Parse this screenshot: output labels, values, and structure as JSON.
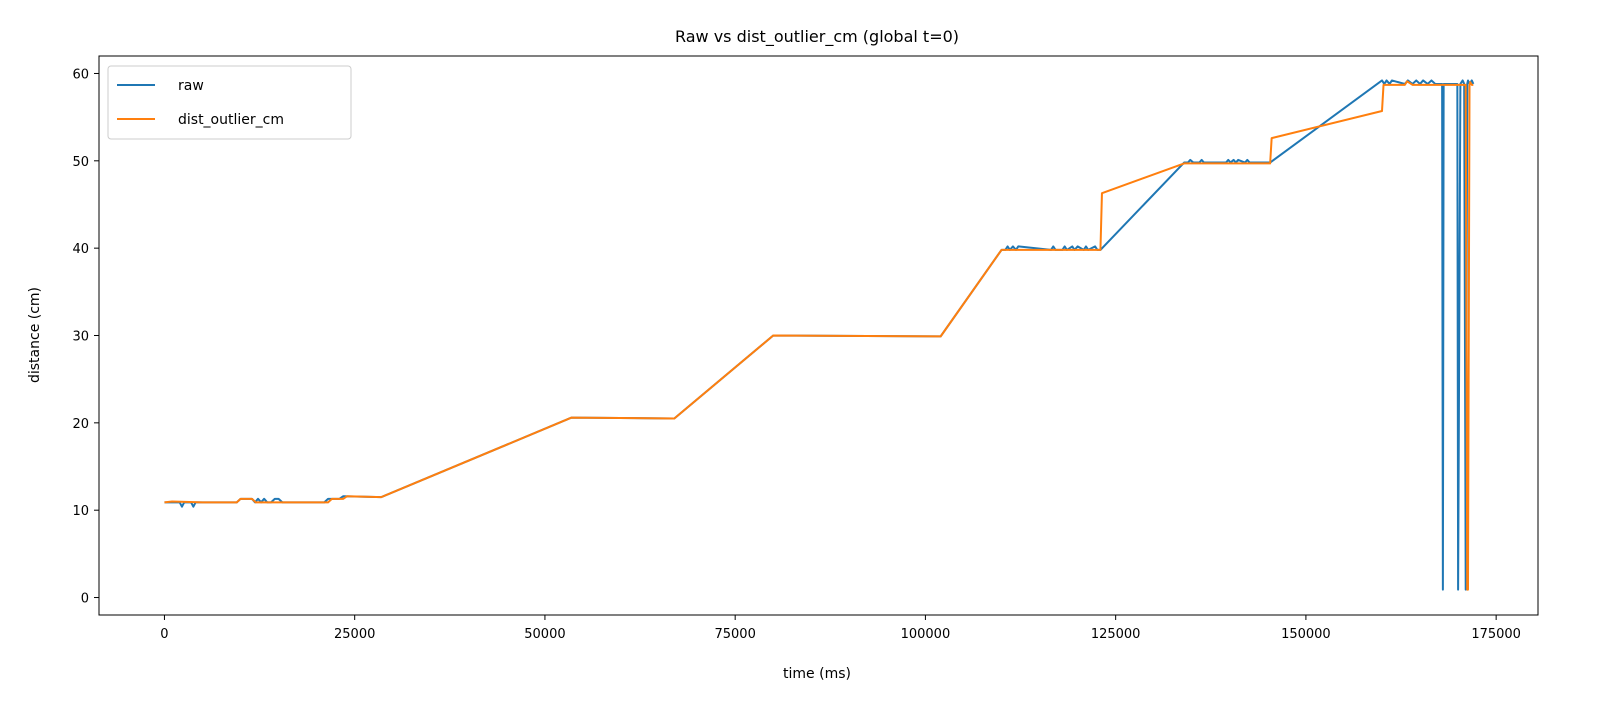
{
  "chart_data": {
    "type": "line",
    "title": "Raw vs dist_outlier_cm (global t=0)",
    "xlabel": "time (ms)",
    "ylabel": "distance (cm)",
    "xlim": [
      -8600,
      180500
    ],
    "ylim": [
      -2,
      62
    ],
    "xticks": [
      0,
      25000,
      50000,
      75000,
      100000,
      125000,
      150000,
      175000
    ],
    "yticks": [
      0,
      10,
      20,
      30,
      40,
      50,
      60
    ],
    "grid": false,
    "legend_position": "top-left",
    "series": [
      {
        "name": "raw",
        "color": "#1f77b4",
        "x": [
          0,
          1500,
          2000,
          2300,
          2600,
          3000,
          3500,
          3800,
          4100,
          5000,
          8000,
          9500,
          10000,
          11500,
          11900,
          12300,
          12700,
          13100,
          13500,
          14000,
          14500,
          15000,
          15500,
          21000,
          21500,
          23000,
          23500,
          28500,
          53500,
          67000,
          80000,
          102000,
          110000,
          110500,
          110800,
          111100,
          111500,
          111900,
          112200,
          116500,
          116800,
          117100,
          118000,
          118300,
          118600,
          119300,
          119600,
          120000,
          120800,
          121100,
          121400,
          122300,
          122600,
          123000,
          134000,
          134500,
          134800,
          135200,
          136000,
          136300,
          136600,
          139500,
          139800,
          140100,
          140500,
          140800,
          141100,
          142000,
          142300,
          142600,
          145300,
          160000,
          160300,
          160600,
          161000,
          161300,
          163000,
          163400,
          164000,
          164500,
          165000,
          165400,
          166000,
          166500,
          167000,
          167500,
          167900,
          168000,
          168100,
          168300,
          169000,
          169500,
          169900,
          170000,
          170300,
          170600,
          170800,
          171000,
          171200,
          171300,
          171500,
          171800,
          172000
        ],
        "y": [
          10.9,
          10.9,
          10.9,
          10.4,
          10.9,
          10.9,
          10.9,
          10.4,
          10.9,
          10.9,
          10.9,
          10.9,
          11.3,
          11.3,
          10.9,
          11.3,
          10.9,
          11.3,
          10.9,
          10.9,
          11.3,
          11.3,
          10.9,
          10.9,
          11.3,
          11.3,
          11.6,
          11.5,
          20.6,
          20.5,
          30.0,
          29.9,
          39.8,
          39.8,
          40.2,
          39.8,
          40.2,
          39.8,
          40.2,
          39.8,
          40.2,
          39.8,
          39.8,
          40.2,
          39.8,
          40.2,
          39.8,
          40.2,
          39.8,
          40.2,
          39.8,
          40.2,
          39.8,
          39.8,
          49.8,
          49.8,
          50.1,
          49.8,
          49.8,
          50.1,
          49.8,
          49.8,
          50.1,
          49.8,
          50.1,
          49.8,
          50.1,
          49.8,
          50.1,
          49.8,
          49.8,
          59.2,
          58.8,
          59.2,
          58.8,
          59.2,
          58.8,
          59.2,
          58.8,
          59.2,
          58.8,
          59.2,
          58.8,
          59.2,
          58.8,
          58.8,
          58.8,
          0.9,
          58.8,
          58.8,
          58.8,
          58.8,
          58.8,
          0.9,
          58.8,
          59.2,
          58.8,
          0.9,
          58.8,
          59.2,
          58.8,
          59.2,
          58.8
        ]
      },
      {
        "name": "dist_outlier_cm",
        "color": "#ff7f0e",
        "x": [
          0,
          1000,
          5000,
          9500,
          10000,
          11500,
          12000,
          21500,
          22000,
          23500,
          24000,
          28500,
          53500,
          67000,
          80000,
          102000,
          110000,
          123000,
          123200,
          134000,
          145300,
          145500,
          160000,
          160200,
          161000,
          163000,
          163300,
          164000,
          165000,
          166000,
          167000,
          168000,
          169000,
          170000,
          170500,
          171000,
          171200,
          171300,
          171500,
          171600,
          171800,
          172000
        ],
        "y": [
          10.9,
          11.0,
          10.9,
          10.9,
          11.3,
          11.3,
          10.9,
          10.9,
          11.3,
          11.3,
          11.6,
          11.5,
          20.6,
          20.5,
          30.0,
          29.9,
          39.8,
          39.8,
          46.3,
          49.7,
          49.7,
          52.6,
          55.7,
          58.7,
          58.7,
          58.7,
          59.1,
          58.7,
          58.7,
          58.7,
          58.7,
          58.7,
          58.7,
          58.7,
          58.7,
          58.7,
          0.9,
          0.9,
          58.7,
          59.0,
          58.7,
          58.7
        ]
      }
    ]
  }
}
